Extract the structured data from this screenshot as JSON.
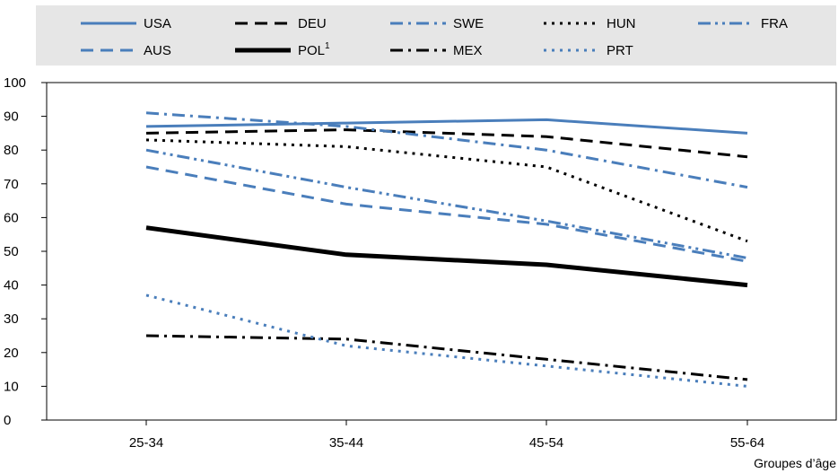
{
  "chart_data": {
    "type": "line",
    "xlabel": "Groupes d’âge",
    "ylabel": "",
    "ylim": [
      0,
      100
    ],
    "yticks": [
      "0",
      "10",
      "20",
      "30",
      "40",
      "50",
      "60",
      "70",
      "80",
      "90",
      "100"
    ],
    "categories": [
      "25-34",
      "35-44",
      "45-54",
      "55-64"
    ],
    "grid": false,
    "legend_placement": "top",
    "series": [
      {
        "name": "USA",
        "superscript": "",
        "values": [
          87,
          88,
          89,
          85
        ],
        "color": "#4a7ebb",
        "style": "solid"
      },
      {
        "name": "DEU",
        "superscript": "",
        "values": [
          85,
          86,
          84,
          78
        ],
        "color": "#000000",
        "style": "dashed"
      },
      {
        "name": "SWE",
        "superscript": "",
        "values": [
          91,
          87,
          80,
          69
        ],
        "color": "#4a7ebb",
        "style": "dashdot"
      },
      {
        "name": "HUN",
        "superscript": "",
        "values": [
          83,
          81,
          75,
          53
        ],
        "color": "#000000",
        "style": "dotted"
      },
      {
        "name": "FRA",
        "superscript": "",
        "values": [
          80,
          69,
          59,
          48
        ],
        "color": "#4a7ebb",
        "style": "dashdotdot"
      },
      {
        "name": "AUS",
        "superscript": "",
        "values": [
          75,
          64,
          58,
          47
        ],
        "color": "#4a7ebb",
        "style": "dashed"
      },
      {
        "name": "POL",
        "superscript": "1",
        "values": [
          57,
          49,
          46,
          40
        ],
        "color": "#000000",
        "style": "thick"
      },
      {
        "name": "MEX",
        "superscript": "",
        "values": [
          25,
          24,
          18,
          12
        ],
        "color": "#000000",
        "style": "dashdot"
      },
      {
        "name": "PRT",
        "superscript": "",
        "values": [
          37,
          22,
          16,
          10
        ],
        "color": "#4a7ebb",
        "style": "dotted"
      }
    ]
  },
  "colors": {
    "blue": "#4a7ebb",
    "black": "#000000",
    "legend_background": "#e6e6e6",
    "plot_background": "#ffffff"
  }
}
